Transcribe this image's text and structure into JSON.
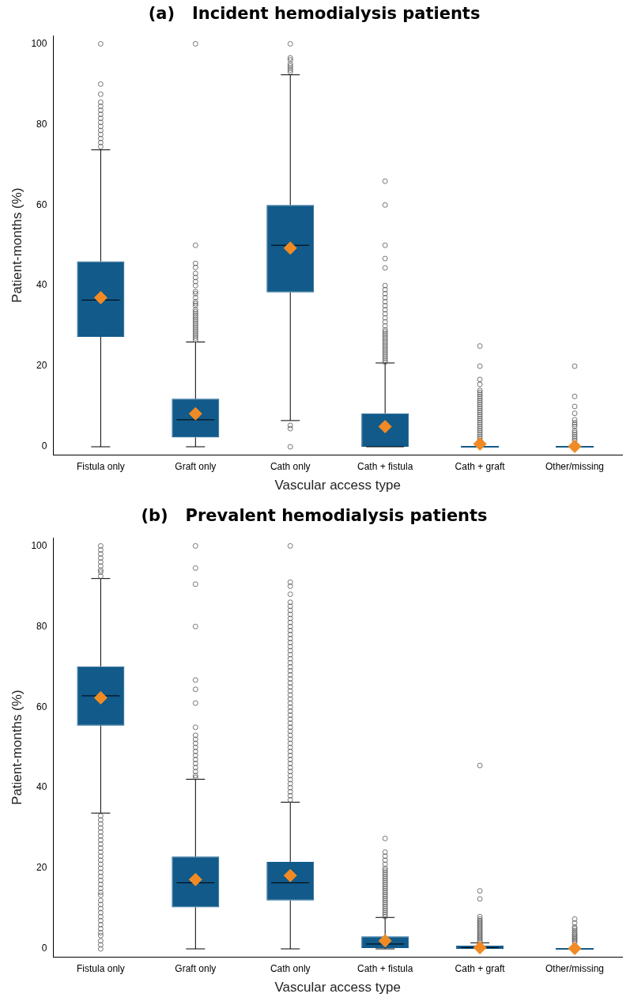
{
  "chart_data": [
    {
      "type": "box",
      "title": "(a)   Incident hemodialysis patients",
      "xlabel": "Vascular access type",
      "ylabel": "Patient-months (%)",
      "categories": [
        "Fistula only",
        "Graft only",
        "Cath only",
        "Cath + fistula",
        "Cath + graft",
        "Other/missing"
      ],
      "ylim": [
        -2,
        102
      ],
      "yticks": [
        0,
        20,
        40,
        60,
        80,
        100
      ],
      "grid": false,
      "legend": false,
      "marker": "diamond",
      "series": [
        {
          "color": "#115a8a",
          "boxes": [
            {
              "low": 0,
              "q1": 27.3,
              "median": 36.4,
              "q3": 46,
              "high": 73.7,
              "mean": 37,
              "outliers": [
                74.5,
                75.5,
                76.5,
                77.5,
                78.5,
                79.5,
                80.5,
                81.5,
                82.5,
                83.5,
                84.5,
                85.5,
                87.5,
                90,
                100
              ]
            },
            {
              "low": 0,
              "q1": 2.3,
              "median": 6.7,
              "q3": 11.9,
              "high": 26,
              "mean": 8.2,
              "outliers": [
                26.5,
                27,
                27.5,
                28,
                28.5,
                29,
                29.5,
                30,
                30.5,
                31,
                31.5,
                32,
                32.5,
                33,
                33.5,
                34,
                35,
                35.5,
                36,
                37,
                38,
                38.5,
                40,
                41,
                42,
                43,
                44.5,
                45.5,
                50,
                100
              ]
            },
            {
              "low": 6.5,
              "q1": 38.3,
              "median": 50,
              "q3": 60,
              "high": 92.3,
              "mean": 49.3,
              "outliers": [
                0,
                4.5,
                5.3,
                93,
                93.5,
                94,
                94.5,
                95,
                96,
                96.5,
                100
              ]
            },
            {
              "low": 0,
              "q1": 0,
              "median": 0,
              "q3": 8.3,
              "high": 20.8,
              "mean": 5,
              "outliers": [
                21,
                21.5,
                22,
                22.5,
                23,
                23.5,
                24,
                24.5,
                25,
                25.5,
                26,
                26.5,
                27,
                27.5,
                28,
                28.5,
                29,
                30,
                31,
                32,
                33,
                34,
                35,
                36,
                37,
                38,
                39,
                40,
                44.4,
                46.7,
                50,
                60,
                65.9
              ]
            },
            {
              "low": 0,
              "q1": 0,
              "median": 0,
              "q3": 0,
              "high": 0,
              "mean": 0.7,
              "outliers": [
                1.5,
                2,
                2.5,
                3,
                3.5,
                4,
                4.5,
                5,
                5.5,
                6,
                6.5,
                7,
                7.5,
                8,
                8.5,
                9,
                9.5,
                10,
                10.5,
                11,
                11.5,
                12,
                12.5,
                13,
                13.5,
                14,
                15.5,
                16.7,
                20,
                25
              ]
            },
            {
              "low": 0,
              "q1": 0,
              "median": 0,
              "q3": 0,
              "high": 0,
              "mean": 0.1,
              "outliers": [
                1.5,
                2,
                2.5,
                3,
                3.5,
                4,
                5,
                5.5,
                6,
                6.7,
                8.3,
                10,
                12.5,
                20
              ]
            }
          ]
        }
      ]
    },
    {
      "type": "box",
      "title": "(b)   Prevalent hemodialysis patients",
      "xlabel": "Vascular access type",
      "ylabel": "Patient-months (%)",
      "categories": [
        "Fistula only",
        "Graft only",
        "Cath only",
        "Cath + fistula",
        "Cath + graft",
        "Other/missing"
      ],
      "ylim": [
        -2,
        102
      ],
      "yticks": [
        0,
        20,
        40,
        60,
        80,
        100
      ],
      "grid": false,
      "legend": false,
      "marker": "diamond",
      "series": [
        {
          "color": "#115a8a",
          "boxes": [
            {
              "low": 33.7,
              "q1": 55.4,
              "median": 62.8,
              "q3": 70.1,
              "high": 91.9,
              "mean": 62.3,
              "outliers": [
                0,
                1,
                2,
                3.3,
                4,
                5,
                6,
                7,
                8,
                9,
                10,
                11,
                12,
                13.3,
                14,
                15,
                16,
                17,
                18,
                19,
                20,
                21,
                22,
                23,
                24,
                25,
                26,
                27,
                28,
                29,
                30,
                31,
                32,
                33,
                92.5,
                93.5,
                94,
                95,
                96,
                97,
                98,
                99,
                100
              ]
            },
            {
              "low": 0,
              "q1": 10.3,
              "median": 16.4,
              "q3": 22.9,
              "high": 42.1,
              "mean": 17.2,
              "outliers": [
                42.5,
                43,
                44,
                45,
                46,
                47,
                48,
                49,
                50,
                51,
                52,
                53,
                55,
                61,
                64.4,
                66.7,
                80,
                90.5,
                94.5,
                100
              ]
            },
            {
              "low": 0,
              "q1": 12,
              "median": 16.4,
              "q3": 21.6,
              "high": 36.4,
              "mean": 18.2,
              "outliers": [
                37,
                38,
                39,
                40,
                41,
                42,
                43,
                44,
                45,
                46,
                47,
                48,
                49,
                50,
                51,
                52,
                53,
                54,
                55,
                56,
                57,
                58,
                59,
                60,
                61,
                62,
                63,
                64,
                65,
                66,
                67,
                68,
                69,
                70,
                71,
                72,
                73,
                74,
                75,
                76,
                77,
                78,
                79,
                80,
                81,
                82,
                83,
                84,
                85,
                86,
                88,
                90,
                91,
                100
              ]
            },
            {
              "low": 0,
              "q1": 0.2,
              "median": 1.2,
              "q3": 3.1,
              "high": 7.8,
              "mean": 2,
              "outliers": [
                8,
                8.5,
                9,
                9.5,
                10,
                10.5,
                11,
                11.5,
                12,
                12.5,
                13,
                13.5,
                14,
                14.5,
                15,
                15.5,
                16,
                16.5,
                17,
                17.5,
                18,
                18.5,
                19,
                19.5,
                20,
                21,
                22,
                23,
                24,
                27.4
              ]
            },
            {
              "low": 0,
              "q1": 0,
              "median": 0.3,
              "q3": 0.8,
              "high": 1.5,
              "mean": 0.3,
              "outliers": [
                1.8,
                2.2,
                2.6,
                3,
                3.4,
                3.8,
                4.2,
                4.6,
                5,
                5.4,
                5.8,
                6.2,
                6.6,
                7,
                7.4,
                8,
                12.4,
                14.4,
                45.5
              ]
            },
            {
              "low": 0,
              "q1": 0,
              "median": 0,
              "q3": 0,
              "high": 0,
              "mean": 0.1,
              "outliers": [
                1.6,
                2,
                2.4,
                2.8,
                3.2,
                3.6,
                4,
                4.5,
                5,
                5.4,
                6.4,
                7.4
              ]
            }
          ]
        }
      ]
    }
  ]
}
